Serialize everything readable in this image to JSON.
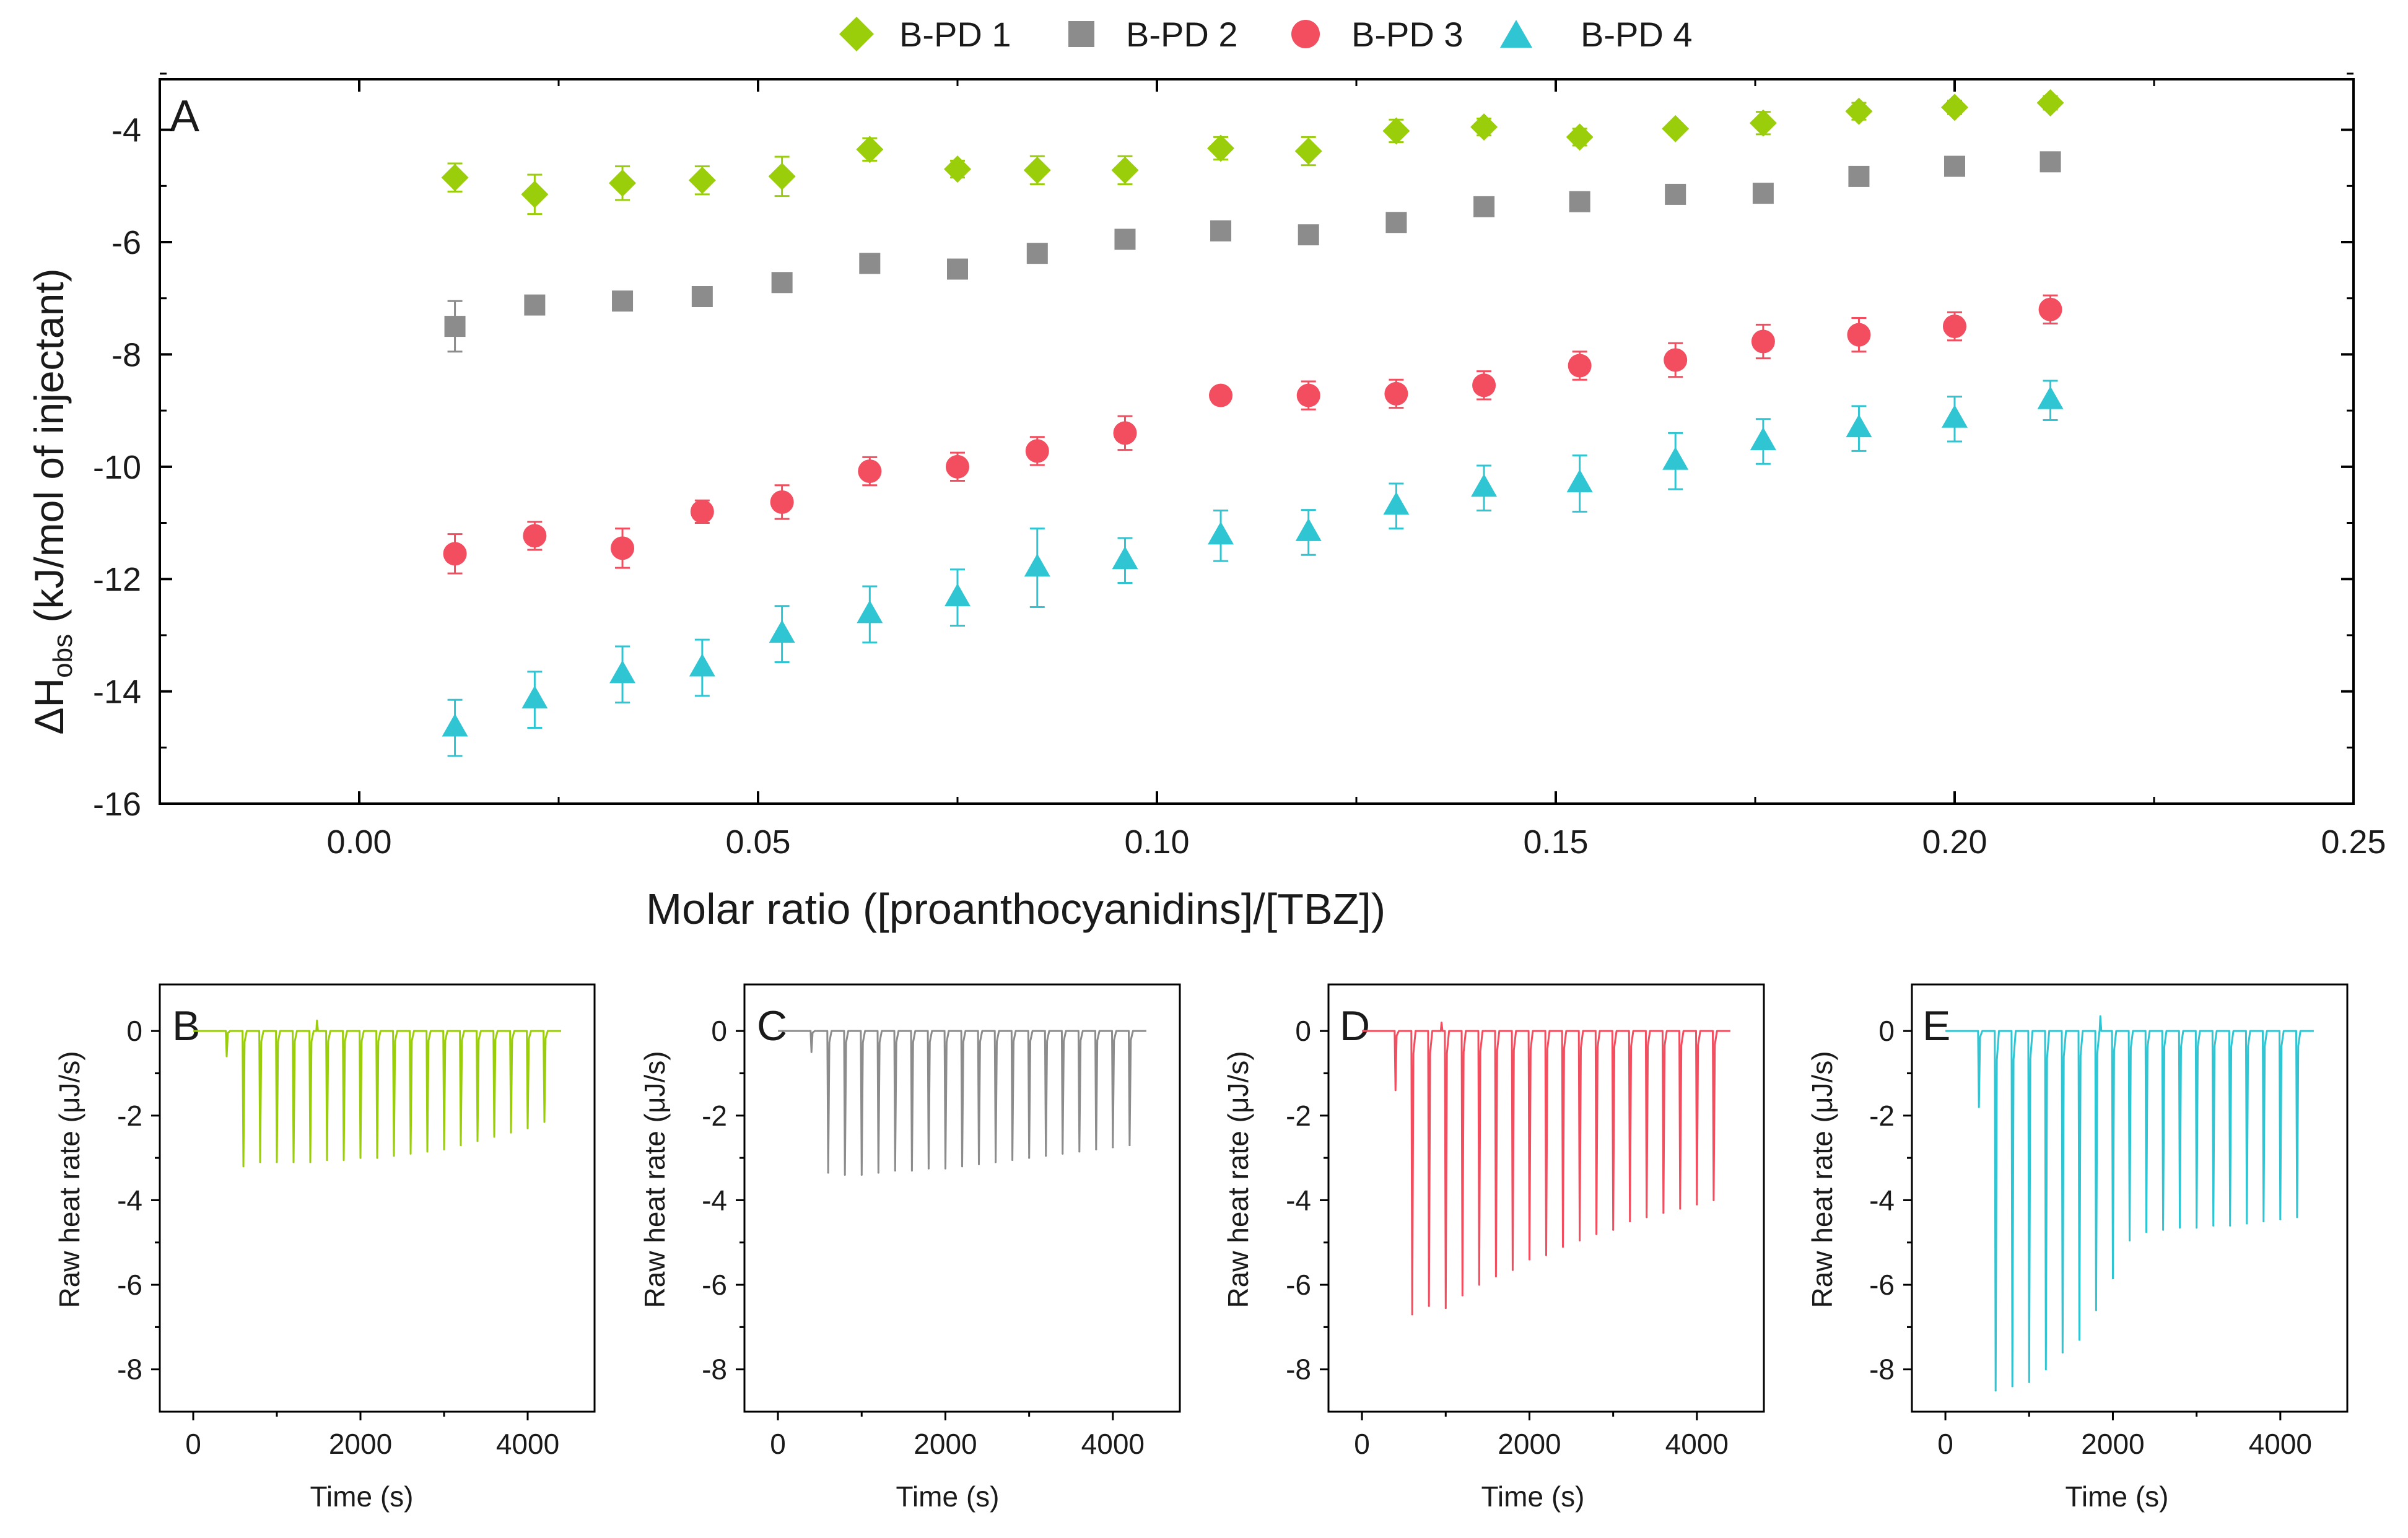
{
  "legend": {
    "items": [
      {
        "label": "B-PD 1",
        "marker": "diamond",
        "color": "#9ACD0A"
      },
      {
        "label": "B-PD 2",
        "marker": "square",
        "color": "#8C8C8C"
      },
      {
        "label": "B-PD 3",
        "marker": "circle",
        "color": "#F24E5F"
      },
      {
        "label": "B-PD 4",
        "marker": "triangle",
        "color": "#2FC5D3"
      }
    ]
  },
  "chart_data": [
    {
      "panel": "A",
      "type": "scatter",
      "xlabel": "Molar ratio ([proanthocyanidins]/[TBZ])",
      "ylabel_prefix": "ΔH",
      "ylabel_sub": "obs",
      "ylabel_suffix": " (kJ/mol of injectant)",
      "xlim": [
        -0.025,
        0.25
      ],
      "ylim": [
        -16,
        -3.1
      ],
      "xticks": [
        0.0,
        0.05,
        0.1,
        0.15,
        0.2,
        0.25
      ],
      "xtick_labels": [
        "0.00",
        "0.05",
        "0.10",
        "0.15",
        "0.20",
        "0.25"
      ],
      "yticks": [
        -16,
        -14,
        -12,
        -10,
        -8,
        -6,
        -4
      ],
      "ytick_labels": [
        "-16",
        "-14",
        "-12",
        "-10",
        "-8",
        "-6",
        "-4"
      ],
      "x": [
        0.012,
        0.022,
        0.033,
        0.043,
        0.053,
        0.064,
        0.075,
        0.085,
        0.096,
        0.108,
        0.119,
        0.13,
        0.141,
        0.153,
        0.165,
        0.176,
        0.188,
        0.2,
        0.212
      ],
      "series": [
        {
          "name": "B-PD 1",
          "marker": "diamond",
          "color": "#9ACD0A",
          "values": [
            -4.85,
            -5.15,
            -4.95,
            -4.9,
            -4.83,
            -4.35,
            -4.7,
            -4.72,
            -4.72,
            -4.33,
            -4.38,
            -4.02,
            -3.95,
            -4.13,
            -3.98,
            -3.88,
            -3.67,
            -3.6,
            -3.52
          ],
          "errors": [
            0.25,
            0.35,
            0.3,
            0.25,
            0.35,
            0.2,
            0.15,
            0.25,
            0.25,
            0.2,
            0.25,
            0.2,
            0.15,
            0.15,
            0.1,
            0.2,
            0.15,
            0.12,
            0.12
          ]
        },
        {
          "name": "B-PD 2",
          "marker": "square",
          "color": "#8C8C8C",
          "values": [
            -7.5,
            -7.12,
            -7.05,
            -6.97,
            -6.72,
            -6.38,
            -6.48,
            -6.2,
            -5.95,
            -5.8,
            -5.87,
            -5.65,
            -5.37,
            -5.28,
            -5.15,
            -5.13,
            -4.83,
            -4.65,
            -4.57
          ],
          "errors": [
            0.45,
            0.1,
            0.15,
            0.1,
            0.1,
            0.1,
            0.1,
            0.1,
            0.1,
            0.1,
            0.1,
            0.1,
            0.1,
            0.1,
            0.1,
            0.1,
            0.1,
            0.1,
            0.1
          ]
        },
        {
          "name": "B-PD 3",
          "marker": "circle",
          "color": "#F24E5F",
          "values": [
            -11.55,
            -11.23,
            -11.45,
            -10.8,
            -10.63,
            -10.08,
            -10.0,
            -9.72,
            -9.4,
            -8.73,
            -8.73,
            -8.7,
            -8.55,
            -8.2,
            -8.1,
            -7.77,
            -7.65,
            -7.5,
            -7.2
          ],
          "errors": [
            0.35,
            0.25,
            0.35,
            0.2,
            0.3,
            0.25,
            0.25,
            0.25,
            0.3,
            0.1,
            0.25,
            0.25,
            0.25,
            0.25,
            0.3,
            0.3,
            0.3,
            0.25,
            0.25
          ]
        },
        {
          "name": "B-PD 4",
          "marker": "triangle",
          "color": "#2FC5D3",
          "values": [
            -14.65,
            -14.15,
            -13.7,
            -13.58,
            -12.98,
            -12.63,
            -12.33,
            -11.8,
            -11.67,
            -11.23,
            -11.17,
            -10.7,
            -10.38,
            -10.3,
            -9.9,
            -9.55,
            -9.32,
            -9.15,
            -8.82
          ],
          "errors": [
            0.5,
            0.5,
            0.5,
            0.5,
            0.5,
            0.5,
            0.5,
            0.7,
            0.4,
            0.45,
            0.4,
            0.4,
            0.4,
            0.5,
            0.5,
            0.4,
            0.4,
            0.4,
            0.35
          ]
        }
      ]
    },
    {
      "panel": "B",
      "type": "line",
      "color": "#9ACD0A",
      "xlabel": "Time (s)",
      "ylabel": "Raw heat rate (μJ/s)",
      "xlim": [
        -400,
        4800
      ],
      "ylim": [
        -9,
        1.1
      ],
      "xticks": [
        0,
        2000,
        4000
      ],
      "yticks": [
        -8,
        -6,
        -4,
        -2,
        0
      ],
      "first_injection": {
        "time": 400,
        "depth": -0.6
      },
      "injection_times": [
        600,
        800,
        1000,
        1200,
        1400,
        1600,
        1800,
        2000,
        2200,
        2400,
        2600,
        2800,
        3000,
        3200,
        3400,
        3600,
        3800,
        4000,
        4200
      ],
      "peak_depths": [
        -3.2,
        -3.1,
        -3.1,
        -3.1,
        -3.1,
        -3.05,
        -3.05,
        -3.0,
        -3.0,
        -2.95,
        -2.9,
        -2.85,
        -2.8,
        -2.7,
        -2.6,
        -2.5,
        -2.4,
        -2.3,
        -2.15
      ],
      "spike": {
        "time": 1480,
        "height": 0.25
      }
    },
    {
      "panel": "C",
      "type": "line",
      "color": "#8C8C8C",
      "xlabel": "Time (s)",
      "ylabel": "Raw heat rate (μJ/s)",
      "xlim": [
        -400,
        4800
      ],
      "ylim": [
        -9,
        1.1
      ],
      "xticks": [
        0,
        2000,
        4000
      ],
      "yticks": [
        -8,
        -6,
        -4,
        -2,
        0
      ],
      "first_injection": {
        "time": 400,
        "depth": -0.5
      },
      "injection_times": [
        600,
        800,
        1000,
        1200,
        1400,
        1600,
        1800,
        2000,
        2200,
        2400,
        2600,
        2800,
        3000,
        3200,
        3400,
        3600,
        3800,
        4000,
        4200
      ],
      "peak_depths": [
        -3.35,
        -3.4,
        -3.4,
        -3.35,
        -3.3,
        -3.3,
        -3.25,
        -3.25,
        -3.2,
        -3.15,
        -3.1,
        -3.05,
        -3.0,
        -2.95,
        -2.9,
        -2.85,
        -2.8,
        -2.75,
        -2.7
      ],
      "spike": null
    },
    {
      "panel": "D",
      "type": "line",
      "color": "#F24E5F",
      "xlabel": "Time (s)",
      "ylabel": "Raw heat rate (μJ/s)",
      "xlim": [
        -400,
        4800
      ],
      "ylim": [
        -9,
        1.1
      ],
      "xticks": [
        0,
        2000,
        4000
      ],
      "yticks": [
        -8,
        -6,
        -4,
        -2,
        0
      ],
      "first_injection": {
        "time": 400,
        "depth": -1.4
      },
      "injection_times": [
        600,
        800,
        1000,
        1200,
        1400,
        1600,
        1800,
        2000,
        2200,
        2400,
        2600,
        2800,
        3000,
        3200,
        3400,
        3600,
        3800,
        4000,
        4200
      ],
      "peak_depths": [
        -6.7,
        -6.5,
        -6.55,
        -6.25,
        -6.0,
        -5.8,
        -5.65,
        -5.4,
        -5.3,
        -5.1,
        -4.95,
        -4.8,
        -4.7,
        -4.5,
        -4.4,
        -4.3,
        -4.2,
        -4.1,
        -4.0
      ],
      "spike": {
        "time": 950,
        "height": 0.2
      }
    },
    {
      "panel": "E",
      "type": "line",
      "color": "#2FC5D3",
      "xlabel": "Time (s)",
      "ylabel": "Raw heat rate (μJ/s)",
      "xlim": [
        -400,
        4800
      ],
      "ylim": [
        -9,
        1.1
      ],
      "xticks": [
        0,
        2000,
        4000
      ],
      "yticks": [
        -8,
        -6,
        -4,
        -2,
        0
      ],
      "first_injection": {
        "time": 400,
        "depth": -1.8
      },
      "injection_times": [
        600,
        800,
        1000,
        1200,
        1400,
        1600,
        1800,
        2000,
        2200,
        2400,
        2600,
        2800,
        3000,
        3200,
        3400,
        3600,
        3800,
        4000,
        4200
      ],
      "peak_depths": [
        -8.5,
        -8.4,
        -8.3,
        -8.0,
        -7.6,
        -7.3,
        -6.6,
        -5.85,
        -4.95,
        -4.75,
        -4.7,
        -4.65,
        -4.65,
        -4.6,
        -4.6,
        -4.55,
        -4.5,
        -4.45,
        -4.4
      ],
      "spike": {
        "time": 1850,
        "height": 0.35
      }
    }
  ]
}
